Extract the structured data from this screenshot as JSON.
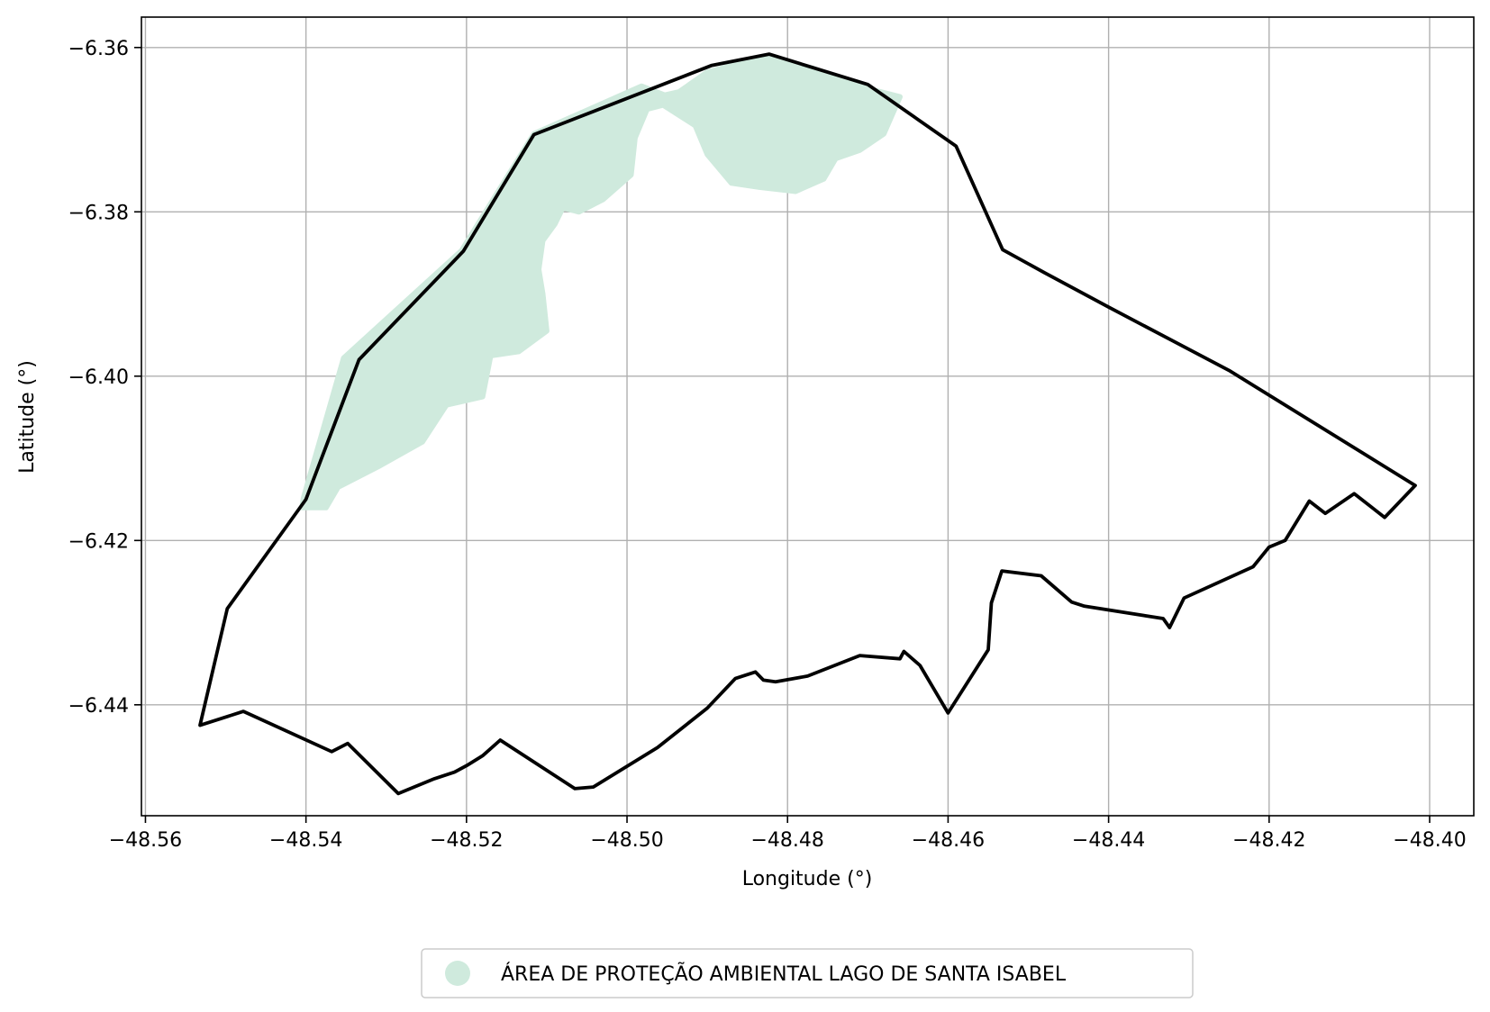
{
  "chart_data": {
    "type": "map",
    "title": "",
    "xlabel": "Longitude (°)",
    "ylabel": "Latitude (°)",
    "xlim": [
      -48.5605,
      -48.3945
    ],
    "ylim": [
      -6.4535,
      -6.3563
    ],
    "xticks": [
      -48.56,
      -48.54,
      -48.52,
      -48.5,
      -48.48,
      -48.46,
      -48.44,
      -48.42,
      -48.4
    ],
    "xtick_labels": [
      "−48.56",
      "−48.54",
      "−48.52",
      "−48.50",
      "−48.48",
      "−48.46",
      "−48.44",
      "−48.42",
      "−48.40"
    ],
    "yticks": [
      -6.36,
      -6.38,
      -6.4,
      -6.42,
      -6.44
    ],
    "ytick_labels": [
      "−6.36",
      "−6.38",
      "−6.40",
      "−6.42",
      "−6.44"
    ],
    "grid": true,
    "legend_position": "bottom-center",
    "colors": {
      "boundary": "#000000",
      "protected_area": "#cfeadd",
      "grid": "#b0b0b0"
    },
    "protected_area": {
      "name": "ÁREA DE PROTEÇÃO AMBIENTAL LAGO DE SANTA ISABEL",
      "polygon": [
        [
          -48.5403,
          -6.4148
        ],
        [
          -48.5353,
          -6.3978
        ],
        [
          -48.5206,
          -6.3847
        ],
        [
          -48.5116,
          -6.3705
        ],
        [
          -48.4982,
          -6.3647
        ],
        [
          -48.4953,
          -6.3658
        ],
        [
          -48.4935,
          -6.3654
        ],
        [
          -48.49,
          -6.363
        ],
        [
          -48.483,
          -6.3612
        ],
        [
          -48.477,
          -6.3625
        ],
        [
          -48.47,
          -6.365
        ],
        [
          -48.466,
          -6.366
        ],
        [
          -48.468,
          -6.3705
        ],
        [
          -48.471,
          -6.3725
        ],
        [
          -48.474,
          -6.3735
        ],
        [
          -48.4755,
          -6.376
        ],
        [
          -48.479,
          -6.3775
        ],
        [
          -48.4835,
          -6.377
        ],
        [
          -48.487,
          -6.3765
        ],
        [
          -48.49,
          -6.373
        ],
        [
          -48.4915,
          -6.3695
        ],
        [
          -48.4955,
          -6.367
        ],
        [
          -48.4975,
          -6.3675
        ],
        [
          -48.499,
          -6.371
        ],
        [
          -48.4995,
          -6.3755
        ],
        [
          -48.503,
          -6.3785
        ],
        [
          -48.506,
          -6.38
        ],
        [
          -48.508,
          -6.3795
        ],
        [
          -48.509,
          -6.3815
        ],
        [
          -48.5105,
          -6.3835
        ],
        [
          -48.511,
          -6.387
        ],
        [
          -48.5105,
          -6.39
        ],
        [
          -48.51,
          -6.3945
        ],
        [
          -48.5135,
          -6.397
        ],
        [
          -48.517,
          -6.3975
        ],
        [
          -48.518,
          -6.4025
        ],
        [
          -48.5225,
          -6.4035
        ],
        [
          -48.5255,
          -6.408
        ],
        [
          -48.531,
          -6.411
        ],
        [
          -48.536,
          -6.4135
        ],
        [
          -48.5375,
          -6.416
        ],
        [
          -48.5405,
          -6.416
        ]
      ]
    },
    "boundary": {
      "polygon": [
        [
          -48.5532,
          -6.4425
        ],
        [
          -48.5498,
          -6.4283
        ],
        [
          -48.54,
          -6.415
        ],
        [
          -48.5334,
          -6.398
        ],
        [
          -48.5204,
          -6.3848
        ],
        [
          -48.5116,
          -6.3706
        ],
        [
          -48.4895,
          -6.3622
        ],
        [
          -48.4823,
          -6.3608
        ],
        [
          -48.47,
          -6.3645
        ],
        [
          -48.459,
          -6.372
        ],
        [
          -48.4532,
          -6.3846
        ],
        [
          -48.448,
          -6.3874
        ],
        [
          -48.44,
          -6.3916
        ],
        [
          -48.425,
          -6.3993
        ],
        [
          -48.4018,
          -6.4133
        ],
        [
          -48.4056,
          -6.4172
        ],
        [
          -48.4094,
          -6.4143
        ],
        [
          -48.413,
          -6.4167
        ],
        [
          -48.415,
          -6.4152
        ],
        [
          -48.418,
          -6.42
        ],
        [
          -48.42,
          -6.4208
        ],
        [
          -48.422,
          -6.4232
        ],
        [
          -48.4306,
          -6.427
        ],
        [
          -48.4324,
          -6.4306
        ],
        [
          -48.4332,
          -6.4295
        ],
        [
          -48.443,
          -6.428
        ],
        [
          -48.4446,
          -6.4275
        ],
        [
          -48.4484,
          -6.4243
        ],
        [
          -48.4533,
          -6.4237
        ],
        [
          -48.4546,
          -6.4276
        ],
        [
          -48.455,
          -6.4333
        ],
        [
          -48.46,
          -6.441
        ],
        [
          -48.4635,
          -6.4352
        ],
        [
          -48.4655,
          -6.4335
        ],
        [
          -48.466,
          -6.4344
        ],
        [
          -48.471,
          -6.434
        ],
        [
          -48.4775,
          -6.4365
        ],
        [
          -48.4815,
          -6.4372
        ],
        [
          -48.483,
          -6.437
        ],
        [
          -48.484,
          -6.436
        ],
        [
          -48.4865,
          -6.4368
        ],
        [
          -48.49,
          -6.4404
        ],
        [
          -48.4962,
          -6.4452
        ],
        [
          -48.5042,
          -6.45
        ],
        [
          -48.5065,
          -6.4502
        ],
        [
          -48.5158,
          -6.4443
        ],
        [
          -48.518,
          -6.4462
        ],
        [
          -48.5198,
          -6.4473
        ],
        [
          -48.5215,
          -6.4482
        ],
        [
          -48.524,
          -6.449
        ],
        [
          -48.5285,
          -6.4508
        ],
        [
          -48.5348,
          -6.4447
        ],
        [
          -48.5368,
          -6.4457
        ],
        [
          -48.5478,
          -6.4408
        ],
        [
          -48.5532,
          -6.4425
        ]
      ]
    }
  }
}
